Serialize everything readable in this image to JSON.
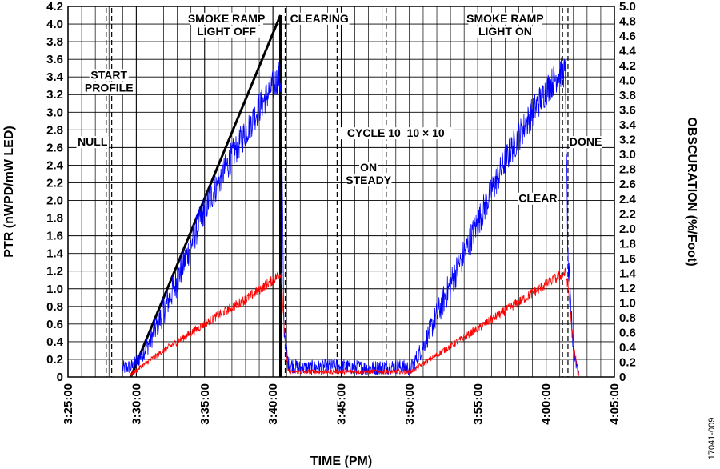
{
  "figure_id": "17041-009",
  "chart_data": {
    "type": "line",
    "xlabel": "TIME (PM)",
    "ylabel": "PTR (nWPD/mW LED)",
    "y2label": "OBSCURATION (%/Foot)",
    "x_unit": "minutes after 3:25:00 PM",
    "xlim": [
      0,
      40
    ],
    "ylim": [
      0,
      4.2
    ],
    "y2lim": [
      0,
      5.0
    ],
    "x_ticks": [
      {
        "value": 0,
        "label": "3:25:00"
      },
      {
        "value": 5,
        "label": "3:30:00"
      },
      {
        "value": 10,
        "label": "3:35:00"
      },
      {
        "value": 15,
        "label": "3:40:00"
      },
      {
        "value": 20,
        "label": "3:45:00"
      },
      {
        "value": 25,
        "label": "3:50:00"
      },
      {
        "value": 30,
        "label": "3:55:00"
      },
      {
        "value": 35,
        "label": "4:00:00"
      },
      {
        "value": 40,
        "label": "4:05:00"
      }
    ],
    "y_ticks": [
      "0",
      "0.2",
      "0.4",
      "0.6",
      "0.8",
      "1.0",
      "1.2",
      "1.4",
      "1.6",
      "1.8",
      "2.0",
      "2.2",
      "2.4",
      "2.6",
      "2.8",
      "3.0",
      "3.2",
      "3.4",
      "3.6",
      "3.8",
      "4.0",
      "4.2"
    ],
    "y2_ticks": [
      "0",
      "0.2",
      "0.4",
      "0.6",
      "0.8",
      "1.0",
      "1.2",
      "1.4",
      "1.6",
      "1.8",
      "2.0",
      "2.2",
      "2.4",
      "2.6",
      "2.8",
      "3.0",
      "3.2",
      "3.4",
      "3.6",
      "3.8",
      "4.0",
      "4.2",
      "4.4",
      "4.6",
      "4.8",
      "5.0"
    ],
    "grid": true,
    "series": [
      {
        "color": "#000000",
        "axis": "right",
        "points": [
          [
            4.6,
            0
          ],
          [
            15.55,
            4.88
          ],
          [
            15.55,
            0
          ]
        ]
      },
      {
        "color": "#0000ff",
        "axis": "left",
        "noisy": true,
        "points": [
          [
            4.0,
            0.1
          ],
          [
            4.8,
            0.12
          ],
          [
            6.0,
            0.4
          ],
          [
            8.0,
            1.1
          ],
          [
            10.0,
            1.9
          ],
          [
            12.0,
            2.5
          ],
          [
            14.0,
            3.05
          ],
          [
            15.0,
            3.3
          ],
          [
            15.45,
            3.4
          ],
          [
            15.6,
            3.3
          ],
          [
            15.8,
            0.6
          ],
          [
            16.1,
            0.15
          ],
          [
            17.0,
            0.1
          ],
          [
            20.0,
            0.12
          ],
          [
            22.0,
            0.1
          ],
          [
            24.0,
            0.12
          ],
          [
            25.1,
            0.1
          ],
          [
            26.0,
            0.35
          ],
          [
            28.0,
            1.05
          ],
          [
            30.0,
            1.75
          ],
          [
            32.0,
            2.45
          ],
          [
            34.0,
            3.0
          ],
          [
            35.0,
            3.25
          ],
          [
            36.0,
            3.45
          ],
          [
            36.4,
            3.45
          ],
          [
            36.6,
            1.3
          ],
          [
            37.0,
            0.3
          ],
          [
            37.4,
            0.05
          ]
        ]
      },
      {
        "color": "#ff0000",
        "axis": "left",
        "noisy": true,
        "points": [
          [
            4.6,
            0.02
          ],
          [
            5.2,
            0.1
          ],
          [
            7.0,
            0.3
          ],
          [
            9.0,
            0.5
          ],
          [
            11.0,
            0.7
          ],
          [
            13.0,
            0.88
          ],
          [
            15.0,
            1.1
          ],
          [
            15.6,
            1.18
          ],
          [
            15.85,
            0.5
          ],
          [
            16.1,
            0.06
          ],
          [
            25.1,
            0.06
          ],
          [
            27.0,
            0.25
          ],
          [
            29.0,
            0.45
          ],
          [
            31.0,
            0.65
          ],
          [
            33.0,
            0.85
          ],
          [
            35.0,
            1.05
          ],
          [
            36.4,
            1.18
          ],
          [
            36.6,
            1.05
          ],
          [
            37.0,
            0.35
          ],
          [
            37.4,
            0.02
          ]
        ]
      }
    ],
    "event_lines": [
      2.8,
      3.2,
      15.9,
      19.7,
      23.3,
      36.2,
      36.6
    ],
    "annotations": [
      {
        "lines": [
          "NULL"
        ],
        "x": 1.8,
        "y": 2.62
      },
      {
        "lines": [
          "START",
          "PROFILE"
        ],
        "x": 3.0,
        "y": 3.38
      },
      {
        "lines": [
          "SMOKE RAMP",
          "LIGHT OFF"
        ],
        "x": 11.6,
        "y": 4.02
      },
      {
        "lines": [
          "CLEARING"
        ],
        "x": 18.4,
        "y": 4.02
      },
      {
        "lines": [
          "CYCLE 10_10 × 10"
        ],
        "x": 24.0,
        "y": 2.72
      },
      {
        "lines": [
          "ON",
          "STEADY"
        ],
        "x": 22.0,
        "y": 2.33
      },
      {
        "lines": [
          "SMOKE RAMP",
          "LIGHT ON"
        ],
        "x": 32.0,
        "y": 4.02
      },
      {
        "lines": [
          "CLEAR"
        ],
        "x": 34.4,
        "y": 1.98
      },
      {
        "lines": [
          "DONE"
        ],
        "x": 37.9,
        "y": 2.62
      }
    ]
  }
}
